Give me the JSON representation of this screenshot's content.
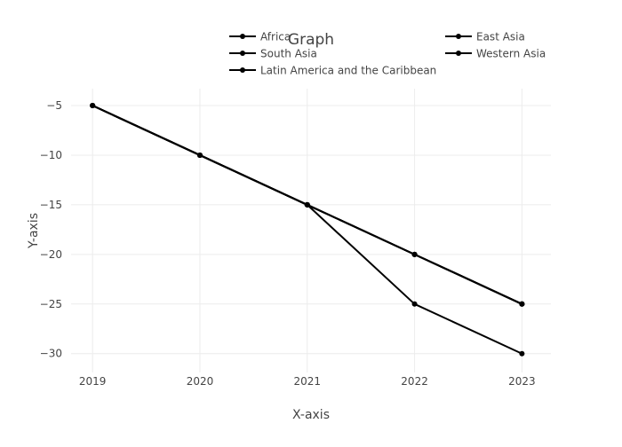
{
  "chart_data": {
    "type": "line",
    "title": "Graph",
    "xlabel": "X-axis",
    "ylabel": "Y-axis",
    "x": [
      2019,
      2020,
      2021,
      2022,
      2023
    ],
    "xlim": [
      2018.8,
      2023.27
    ],
    "ylim": [
      -31.9,
      -3.3
    ],
    "yticks": [
      -5,
      -10,
      -15,
      -20,
      -25,
      -30
    ],
    "ytick_labels": [
      "−5",
      "−10",
      "−15",
      "−20",
      "−25",
      "−30"
    ],
    "grid": true,
    "legend_position": "top",
    "line_color": "#000000",
    "series": [
      {
        "name": "Africa",
        "values": [
          -5,
          -10,
          -15,
          -20,
          -25
        ]
      },
      {
        "name": "East Asia",
        "values": [
          -5,
          -10,
          -15,
          -20,
          -25
        ]
      },
      {
        "name": "South Asia",
        "values": [
          -5,
          -10,
          -15,
          -20,
          -25
        ]
      },
      {
        "name": "Western Asia",
        "values": [
          -5,
          -10,
          -15,
          -20,
          -25
        ]
      },
      {
        "name": "Latin America and the Caribbean",
        "values": [
          -5,
          -10,
          -15,
          -25,
          -30
        ]
      }
    ]
  }
}
